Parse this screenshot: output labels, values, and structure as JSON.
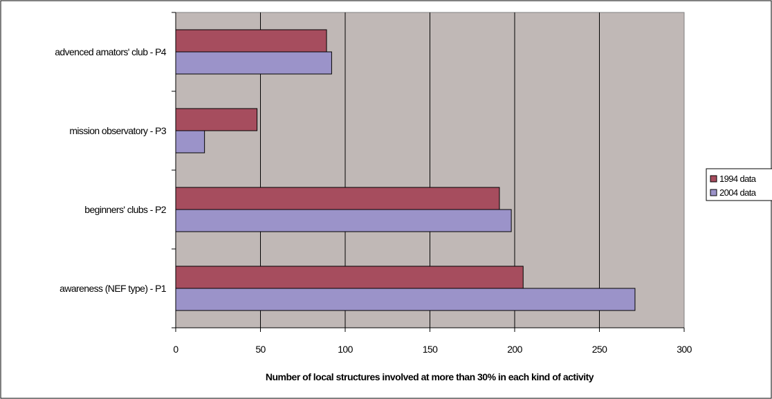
{
  "chart_data": {
    "type": "bar",
    "orientation": "horizontal",
    "categories": [
      "awareness (NEF type) - P1",
      "beginners' clubs - P2",
      "mission observatory - P3",
      "advenced amators' club - P4"
    ],
    "series": [
      {
        "name": "1994 data",
        "color": "#a64d5e",
        "values": [
          205,
          191,
          48,
          89
        ]
      },
      {
        "name": "2004 data",
        "color": "#9b93c9",
        "values": [
          271,
          198,
          17,
          92
        ]
      }
    ],
    "xlabel": "Number of local structures involved at more than 30% in each kind of activity",
    "ylabel": "",
    "xlim": [
      0,
      300
    ],
    "xticks": [
      "0",
      "50",
      "100",
      "150",
      "200",
      "250",
      "300"
    ],
    "grid": true,
    "plot_background": "#c0b8b6",
    "legend_position": "right"
  }
}
